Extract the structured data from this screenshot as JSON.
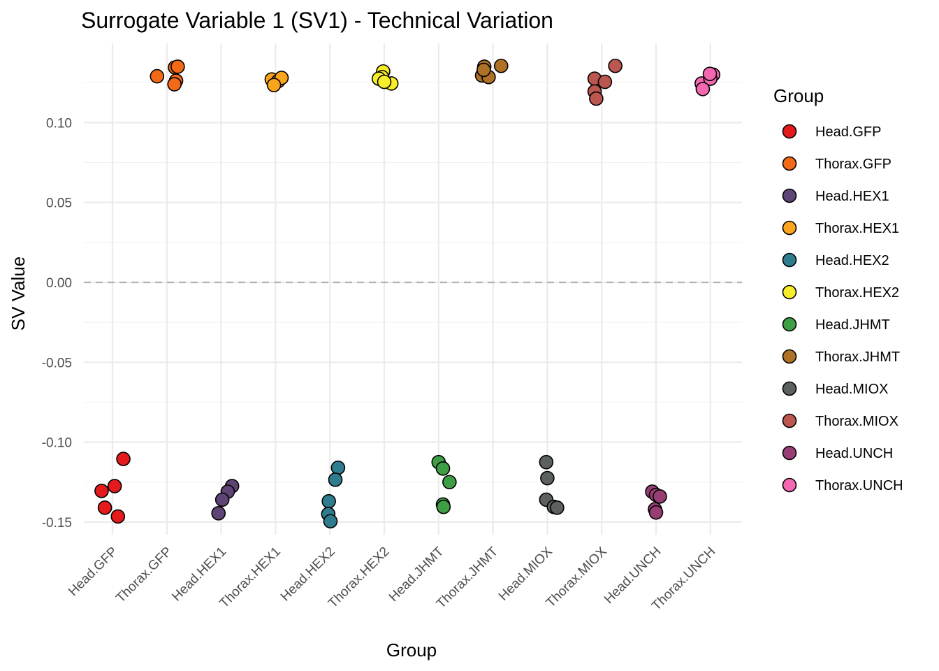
{
  "chart_data": {
    "type": "scatter",
    "title": "Surrogate Variable 1 (SV1) - Technical Variation",
    "xlabel": "Group",
    "ylabel": "SV Value",
    "ylim": [
      -0.165,
      0.15
    ],
    "yticks": [
      "-0.15",
      "-0.10",
      "-0.05",
      "0.00",
      "0.05",
      "0.10"
    ],
    "ytick_values": [
      -0.15,
      -0.1,
      -0.05,
      0.0,
      0.05,
      0.1
    ],
    "reference_line": {
      "y": 0,
      "style": "dashed"
    },
    "legend_title": "Group",
    "legend_position": "right",
    "categories": [
      "Head.GFP",
      "Thorax.GFP",
      "Head.HEX1",
      "Thorax.HEX1",
      "Head.HEX2",
      "Thorax.HEX2",
      "Head.JHMT",
      "Thorax.JHMT",
      "Head.MIOX",
      "Thorax.MIOX",
      "Head.UNCH",
      "Thorax.UNCH"
    ],
    "series": [
      {
        "name": "Head.GFP",
        "color": "#E41A1C",
        "points": [
          [
            -0.2,
            -0.1305
          ],
          [
            0.04,
            -0.1275
          ],
          [
            0.2,
            -0.1105
          ],
          [
            -0.14,
            -0.141
          ],
          [
            0.1,
            -0.1465
          ]
        ]
      },
      {
        "name": "Thorax.GFP",
        "color": "#F26A17",
        "points": [
          [
            -0.18,
            0.129
          ],
          [
            0.15,
            0.1345
          ],
          [
            0.17,
            0.1262
          ],
          [
            0.14,
            0.124
          ],
          [
            0.2,
            0.135
          ]
        ]
      },
      {
        "name": "Head.HEX1",
        "color": "#5F4575",
        "points": [
          [
            0.2,
            -0.1275
          ],
          [
            0.12,
            -0.131
          ],
          [
            0.02,
            -0.136
          ],
          [
            -0.05,
            -0.1445
          ]
        ]
      },
      {
        "name": "Thorax.HEX1",
        "color": "#FAA51B",
        "points": [
          [
            -0.07,
            0.127
          ],
          [
            0.05,
            0.126
          ],
          [
            0.11,
            0.128
          ],
          [
            -0.03,
            0.1235
          ]
        ]
      },
      {
        "name": "Head.HEX2",
        "color": "#2F7C8E",
        "points": [
          [
            0.15,
            -0.116
          ],
          [
            0.1,
            -0.1235
          ],
          [
            -0.02,
            -0.137
          ],
          [
            -0.03,
            -0.145
          ],
          [
            0.01,
            -0.1495
          ]
        ]
      },
      {
        "name": "Thorax.HEX2",
        "color": "#F7EE2A",
        "points": [
          [
            -0.02,
            0.132
          ],
          [
            -0.04,
            0.1285
          ],
          [
            0.13,
            0.1245
          ],
          [
            -0.1,
            0.1275
          ],
          [
            0.0,
            0.1255
          ]
        ]
      },
      {
        "name": "Head.JHMT",
        "color": "#3E9E46",
        "points": [
          [
            0.0,
            -0.1125
          ],
          [
            0.08,
            -0.1165
          ],
          [
            0.2,
            -0.125
          ],
          [
            0.08,
            -0.139
          ],
          [
            0.09,
            -0.1405
          ]
        ]
      },
      {
        "name": "Thorax.JHMT",
        "color": "#AF7125",
        "points": [
          [
            -0.2,
            0.1295
          ],
          [
            -0.16,
            0.135
          ],
          [
            -0.08,
            0.1285
          ],
          [
            0.15,
            0.1355
          ],
          [
            -0.17,
            0.133
          ]
        ]
      },
      {
        "name": "Head.MIOX",
        "color": "#5D615E",
        "points": [
          [
            -0.02,
            -0.1125
          ],
          [
            0.0,
            -0.1225
          ],
          [
            -0.02,
            -0.136
          ],
          [
            0.12,
            -0.1405
          ],
          [
            0.18,
            -0.141
          ]
        ]
      },
      {
        "name": "Thorax.MIOX",
        "color": "#BB5650",
        "points": [
          [
            -0.13,
            0.1275
          ],
          [
            0.06,
            0.1255
          ],
          [
            0.25,
            0.1355
          ],
          [
            -0.13,
            0.1195
          ],
          [
            -0.1,
            0.115
          ]
        ]
      },
      {
        "name": "Head.UNCH",
        "color": "#993E75",
        "points": [
          [
            -0.07,
            -0.131
          ],
          [
            0.0,
            -0.133
          ],
          [
            0.07,
            -0.134
          ],
          [
            -0.02,
            -0.142
          ],
          [
            0.0,
            -0.144
          ]
        ]
      },
      {
        "name": "Thorax.UNCH",
        "color": "#F567B0",
        "points": [
          [
            -0.16,
            0.1245
          ],
          [
            0.05,
            0.13
          ],
          [
            0.0,
            0.1275
          ],
          [
            -0.14,
            0.121
          ],
          [
            -0.01,
            0.1305
          ]
        ]
      }
    ]
  }
}
